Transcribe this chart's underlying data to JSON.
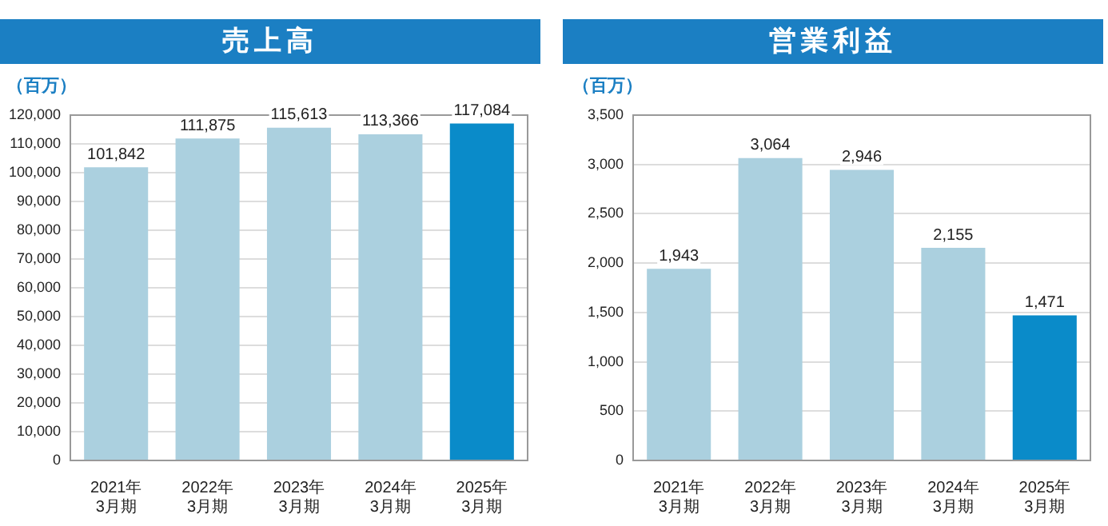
{
  "chart_data": [
    {
      "type": "bar",
      "title": "売上高",
      "ylabel": "（百万）",
      "categories": [
        "2021年\n3月期",
        "2022年\n3月期",
        "2023年\n3月期",
        "2024年\n3月期",
        "2025年\n3月期"
      ],
      "values": [
        101842,
        111875,
        115613,
        113366,
        117084
      ],
      "value_labels": [
        "101,842",
        "111,875",
        "115,613",
        "113,366",
        "117,084"
      ],
      "colors": [
        "#abd0df",
        "#abd0df",
        "#abd0df",
        "#abd0df",
        "#0a8bc9"
      ],
      "ylim": [
        0,
        120000
      ],
      "yticks": [
        {
          "value": 0,
          "label": "0"
        },
        {
          "value": 10000,
          "label": "10,000"
        },
        {
          "value": 20000,
          "label": "20,000"
        },
        {
          "value": 30000,
          "label": "30,000"
        },
        {
          "value": 40000,
          "label": "40,000"
        },
        {
          "value": 50000,
          "label": "50,000"
        },
        {
          "value": 60000,
          "label": "60,000"
        },
        {
          "value": 70000,
          "label": "70,000"
        },
        {
          "value": 80000,
          "label": "80,000"
        },
        {
          "value": 90000,
          "label": "90,000"
        },
        {
          "value": 100000,
          "label": "100,000"
        },
        {
          "value": 110000,
          "label": "110,000"
        },
        {
          "value": 120000,
          "label": "120,000"
        }
      ],
      "grid": "y"
    },
    {
      "type": "bar",
      "title": "営業利益",
      "ylabel": "（百万）",
      "categories": [
        "2021年\n3月期",
        "2022年\n3月期",
        "2023年\n3月期",
        "2024年\n3月期",
        "2025年\n3月期"
      ],
      "values": [
        1943,
        3064,
        2946,
        2155,
        1471
      ],
      "value_labels": [
        "1,943",
        "3,064",
        "2,946",
        "2,155",
        "1,471"
      ],
      "colors": [
        "#abd0df",
        "#abd0df",
        "#abd0df",
        "#abd0df",
        "#0a8bc9"
      ],
      "ylim": [
        0,
        3500
      ],
      "yticks": [
        {
          "value": 0,
          "label": "0"
        },
        500,
        {
          "value": 1000,
          "label": "1,000"
        },
        {
          "value": 1500,
          "label": "1,500"
        },
        {
          "value": 2000,
          "label": "2,000"
        },
        {
          "value": 2500,
          "label": "2,500"
        },
        {
          "value": 3000,
          "label": "3,000"
        },
        {
          "value": 3500,
          "label": "3,500"
        }
      ],
      "grid": "y"
    }
  ]
}
